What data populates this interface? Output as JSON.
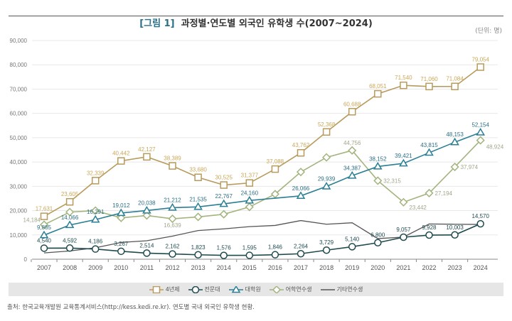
{
  "chart_data": {
    "type": "line",
    "title_tag": "[그림 1]",
    "title": "과정별·연도별 외국인 유학생 수(2007~2024)",
    "unit": "(단위: 명)",
    "xlabel": "",
    "ylabel": "",
    "x": [
      "2007",
      "2008",
      "2009",
      "2010",
      "2011",
      "2012",
      "2013",
      "2014",
      "2015",
      "2016",
      "2017",
      "2018",
      "2019",
      "2020",
      "2021",
      "2022",
      "2023",
      "2024"
    ],
    "ylim": [
      0,
      90000
    ],
    "yticks": [
      "0",
      "10,000",
      "20,000",
      "30,000",
      "40,000",
      "50,000",
      "60,000",
      "70,000",
      "80,000",
      "90,000"
    ],
    "grid": true,
    "legend_position": "bottom",
    "series": [
      {
        "name": "4년제",
        "marker": "square",
        "color": "#b89b5c",
        "label_color": "#c9a85a",
        "values": [
          17631,
          23605,
          32339,
          40442,
          42127,
          38389,
          33680,
          30525,
          31377,
          37088,
          43762,
          52368,
          60688,
          68051,
          71540,
          71060,
          71084,
          79054
        ],
        "labels": [
          "17,631",
          "23,605",
          "32,339",
          "40,442",
          "42,127",
          "38,389",
          "33,680",
          "30,525",
          "31,377",
          "37,088",
          "43,762",
          "52,368",
          "60,688",
          "68,051",
          "71,540",
          "71,060",
          "71,084",
          "79,054"
        ]
      },
      {
        "name": "전문대",
        "marker": "circle",
        "color": "#1f4b4f",
        "label_color": "#1f4b4f",
        "values": [
          4540,
          4592,
          4186,
          3267,
          2514,
          2162,
          1823,
          1576,
          1595,
          1846,
          2264,
          3729,
          5140,
          6800,
          9057,
          9928,
          10003,
          14570
        ],
        "labels": [
          "4,540",
          "4,592",
          "4,186",
          "3,267",
          "2,514",
          "2,162",
          "1,823",
          "1,576",
          "1,595",
          "1,846",
          "2,264",
          "3,729",
          "5,140",
          "6,800",
          "9,057",
          "9,928",
          "10,003",
          "14,570"
        ]
      },
      {
        "name": "대학원",
        "marker": "triangle",
        "color": "#2b7f94",
        "label_color": "#2b6f84",
        "values": [
          9885,
          14066,
          16291,
          19012,
          20038,
          21212,
          21535,
          22767,
          24160,
          null,
          26066,
          29939,
          34387,
          38152,
          39421,
          43815,
          48153,
          52154
        ],
        "labels": [
          "9,885",
          "14,066",
          "16,291",
          "19,012",
          "20,038",
          "21,212",
          "21,535",
          "22,767",
          "24,160",
          "",
          "26,066",
          "29,939",
          "34,387",
          "38,152",
          "39,421",
          "43,815",
          "48,153",
          "52,154"
        ]
      },
      {
        "name": "어학연수생",
        "marker": "diamond",
        "color": "#a3b47e",
        "label_color": "#a0a88a",
        "values": [
          14184,
          19400,
          20000,
          17000,
          18000,
          16639,
          17400,
          18500,
          21500,
          26800,
          35900,
          41900,
          44756,
          32315,
          23442,
          27194,
          37974,
          48924
        ],
        "labels": [
          "14,184",
          "",
          "",
          "",
          "",
          "16,639",
          "",
          "",
          "",
          "",
          "",
          "",
          "44,756",
          "32,315",
          "23,442",
          "27,194",
          "37,974",
          "48,924"
        ]
      },
      {
        "name": "기타연수생",
        "marker": "none",
        "color": "#555555",
        "label_color": "#555555",
        "values": [
          2600,
          3400,
          4700,
          6900,
          7600,
          9500,
          11800,
          12500,
          13400,
          13900,
          15900,
          14400,
          15000,
          8500,
          9100,
          14500,
          14400,
          14300
        ],
        "labels": []
      }
    ]
  },
  "source": "출처: 한국교육개발원 교육통계서비스(http://kess.kedi.re.kr). 연도별 국내 외국인 유학생 현황."
}
